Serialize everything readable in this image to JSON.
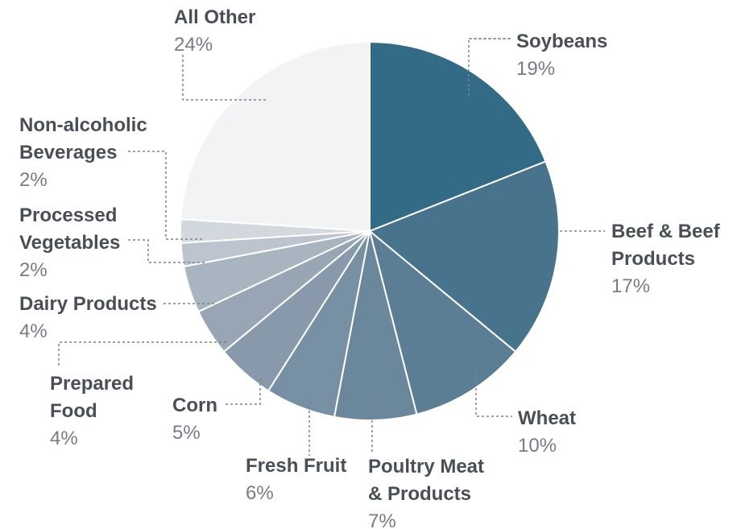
{
  "chart_data": {
    "type": "pie",
    "slices": [
      {
        "label": "Soybeans",
        "value": 19,
        "value_label": "19%",
        "color": "#336a86"
      },
      {
        "label": "Beef & Beef Products",
        "value": 17,
        "value_label": "17%",
        "color": "#47738d"
      },
      {
        "label": "Wheat",
        "value": 10,
        "value_label": "10%",
        "color": "#5b7e95"
      },
      {
        "label": "Poultry Meat & Products",
        "value": 7,
        "value_label": "7%",
        "color": "#6b879c"
      },
      {
        "label": "Fresh Fruit",
        "value": 6,
        "value_label": "6%",
        "color": "#7890a3"
      },
      {
        "label": "Corn",
        "value": 5,
        "value_label": "5%",
        "color": "#8799ab"
      },
      {
        "label": "Prepared Food",
        "value": 4,
        "value_label": "4%",
        "color": "#97a5b5"
      },
      {
        "label": "Dairy Products",
        "value": 4,
        "value_label": "4%",
        "color": "#a9b4c1"
      },
      {
        "label": "Processed Vegetables",
        "value": 2,
        "value_label": "2%",
        "color": "#bcc4cf"
      },
      {
        "label": "Non-alcoholic Beverages",
        "value": 2,
        "value_label": "2%",
        "color": "#d3d8df"
      },
      {
        "label": "All Other",
        "value": 24,
        "value_label": "24%",
        "color": "#f2f3f5"
      }
    ],
    "start_angle": "12 o'clock",
    "direction": "clockwise",
    "legend": "none",
    "labels": "callouts outside slices",
    "callout_color": "#7d8288"
  }
}
